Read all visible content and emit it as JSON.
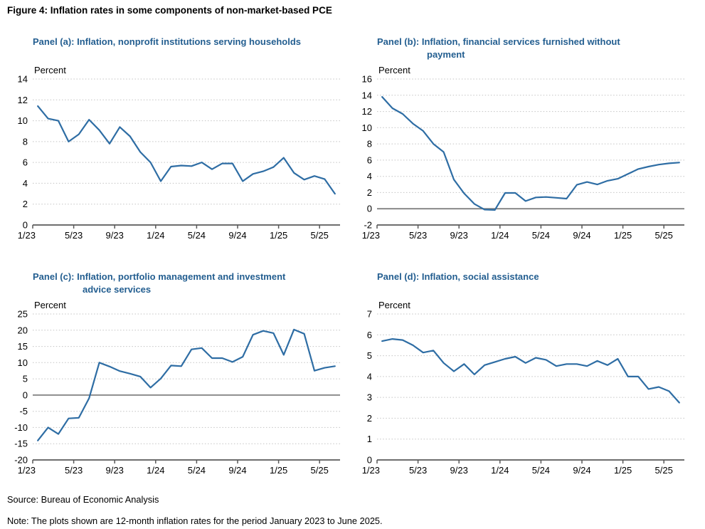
{
  "figure_title": "Figure 4: Inflation rates in some components of non-market-based PCE",
  "source_line": "Source: Bureau of Economic Analysis",
  "note_line": "Note: The plots shown are 12-month inflation rates for the period January 2023 to June 2025.",
  "colors": {
    "line": "#2E6DA4",
    "panel_title": "#235E90",
    "grid": "#C3C3C3",
    "axis": "#595959",
    "zero_line": "#808080",
    "text": "#000000"
  },
  "chart_data": [
    {
      "type": "line",
      "panel": "a",
      "title": "Panel (a): Inflation, nonprofit institutions serving households",
      "title_lines": [
        "Panel (a): Inflation, nonprofit institutions serving households"
      ],
      "ylabel": "Percent",
      "ylim": [
        0,
        14
      ],
      "ytick_step": 2,
      "zero_line": false,
      "x_tick_labels": [
        "1/23",
        "5/23",
        "9/23",
        "1/24",
        "5/24",
        "9/24",
        "1/25",
        "5/25"
      ],
      "x": [
        "1/23",
        "2/23",
        "3/23",
        "4/23",
        "5/23",
        "6/23",
        "7/23",
        "8/23",
        "9/23",
        "10/23",
        "11/23",
        "12/23",
        "1/24",
        "2/24",
        "3/24",
        "4/24",
        "5/24",
        "6/24",
        "7/24",
        "8/24",
        "9/24",
        "10/24",
        "11/24",
        "12/24",
        "1/25",
        "2/25",
        "3/25",
        "4/25",
        "5/25",
        "6/25"
      ],
      "values": [
        11.4,
        10.2,
        10.0,
        8.0,
        8.7,
        10.1,
        9.1,
        7.8,
        9.4,
        8.5,
        7.0,
        6.0,
        4.2,
        5.6,
        5.7,
        5.65,
        6.0,
        5.35,
        5.9,
        5.9,
        4.2,
        4.9,
        5.15,
        5.55,
        6.45,
        5.0,
        4.35,
        4.7,
        4.4,
        3.0
      ]
    },
    {
      "type": "line",
      "panel": "b",
      "title": "Panel (b): Inflation, financial services furnished without payment",
      "title_lines": [
        "Panel (b): Inflation, financial services furnished without",
        "payment"
      ],
      "ylabel": "Percent",
      "ylim": [
        -2,
        16
      ],
      "ytick_step": 2,
      "zero_line": true,
      "x_tick_labels": [
        "1/23",
        "5/23",
        "9/23",
        "1/24",
        "5/24",
        "9/24",
        "1/25",
        "5/25"
      ],
      "x": [
        "1/23",
        "2/23",
        "3/23",
        "4/23",
        "5/23",
        "6/23",
        "7/23",
        "8/23",
        "9/23",
        "10/23",
        "11/23",
        "12/23",
        "1/24",
        "2/24",
        "3/24",
        "4/24",
        "5/24",
        "6/24",
        "7/24",
        "8/24",
        "9/24",
        "10/24",
        "11/24",
        "12/24",
        "1/25",
        "2/25",
        "3/25",
        "4/25",
        "5/25",
        "6/25"
      ],
      "values": [
        13.8,
        12.4,
        11.7,
        10.5,
        9.6,
        8.0,
        7.0,
        3.6,
        1.9,
        0.6,
        -0.1,
        -0.15,
        1.95,
        1.95,
        0.95,
        1.4,
        1.45,
        1.35,
        1.25,
        2.95,
        3.3,
        3.0,
        3.45,
        3.7,
        4.3,
        4.9,
        5.2,
        5.45,
        5.6,
        5.7
      ]
    },
    {
      "type": "line",
      "panel": "c",
      "title": "Panel (c): Inflation, portfolio management and investment advice services",
      "title_lines": [
        "Panel (c): Inflation, portfolio management and investment",
        "advice services"
      ],
      "ylabel": "Percent",
      "ylim": [
        -20,
        25
      ],
      "ytick_step": 5,
      "zero_line": true,
      "x_tick_labels": [
        "1/23",
        "5/23",
        "9/23",
        "1/24",
        "5/24",
        "9/24",
        "1/25",
        "5/25"
      ],
      "x": [
        "1/23",
        "2/23",
        "3/23",
        "4/23",
        "5/23",
        "6/23",
        "7/23",
        "8/23",
        "9/23",
        "10/23",
        "11/23",
        "12/23",
        "1/24",
        "2/24",
        "3/24",
        "4/24",
        "5/24",
        "6/24",
        "7/24",
        "8/24",
        "9/24",
        "10/24",
        "11/24",
        "12/24",
        "1/25",
        "2/25",
        "3/25",
        "4/25",
        "5/25",
        "6/25"
      ],
      "values": [
        -14.0,
        -10.0,
        -12.0,
        -7.2,
        -7.0,
        -1.0,
        10.0,
        8.8,
        7.4,
        6.6,
        5.7,
        2.3,
        5.1,
        9.1,
        8.9,
        14.1,
        14.5,
        11.4,
        11.4,
        10.2,
        11.8,
        18.6,
        19.8,
        19.1,
        12.4,
        20.2,
        18.9,
        7.5,
        8.4,
        8.9
      ]
    },
    {
      "type": "line",
      "panel": "d",
      "title": "Panel (d): Inflation, social assistance",
      "title_lines": [
        "Panel (d): Inflation, social assistance"
      ],
      "ylabel": "Percent",
      "ylim": [
        0,
        7
      ],
      "ytick_step": 1,
      "zero_line": false,
      "x_tick_labels": [
        "1/23",
        "5/23",
        "9/23",
        "1/24",
        "5/24",
        "9/24",
        "1/25",
        "5/25"
      ],
      "x": [
        "1/23",
        "2/23",
        "3/23",
        "4/23",
        "5/23",
        "6/23",
        "7/23",
        "8/23",
        "9/23",
        "10/23",
        "11/23",
        "12/23",
        "1/24",
        "2/24",
        "3/24",
        "4/24",
        "5/24",
        "6/24",
        "7/24",
        "8/24",
        "9/24",
        "10/24",
        "11/24",
        "12/24",
        "1/25",
        "2/25",
        "3/25",
        "4/25",
        "5/25",
        "6/25"
      ],
      "values": [
        5.7,
        5.8,
        5.75,
        5.5,
        5.15,
        5.25,
        4.65,
        4.25,
        4.6,
        4.1,
        4.55,
        4.7,
        4.85,
        4.95,
        4.65,
        4.9,
        4.8,
        4.5,
        4.6,
        4.6,
        4.5,
        4.75,
        4.55,
        4.85,
        4.0,
        4.0,
        3.4,
        3.5,
        3.3,
        2.75
      ]
    }
  ]
}
